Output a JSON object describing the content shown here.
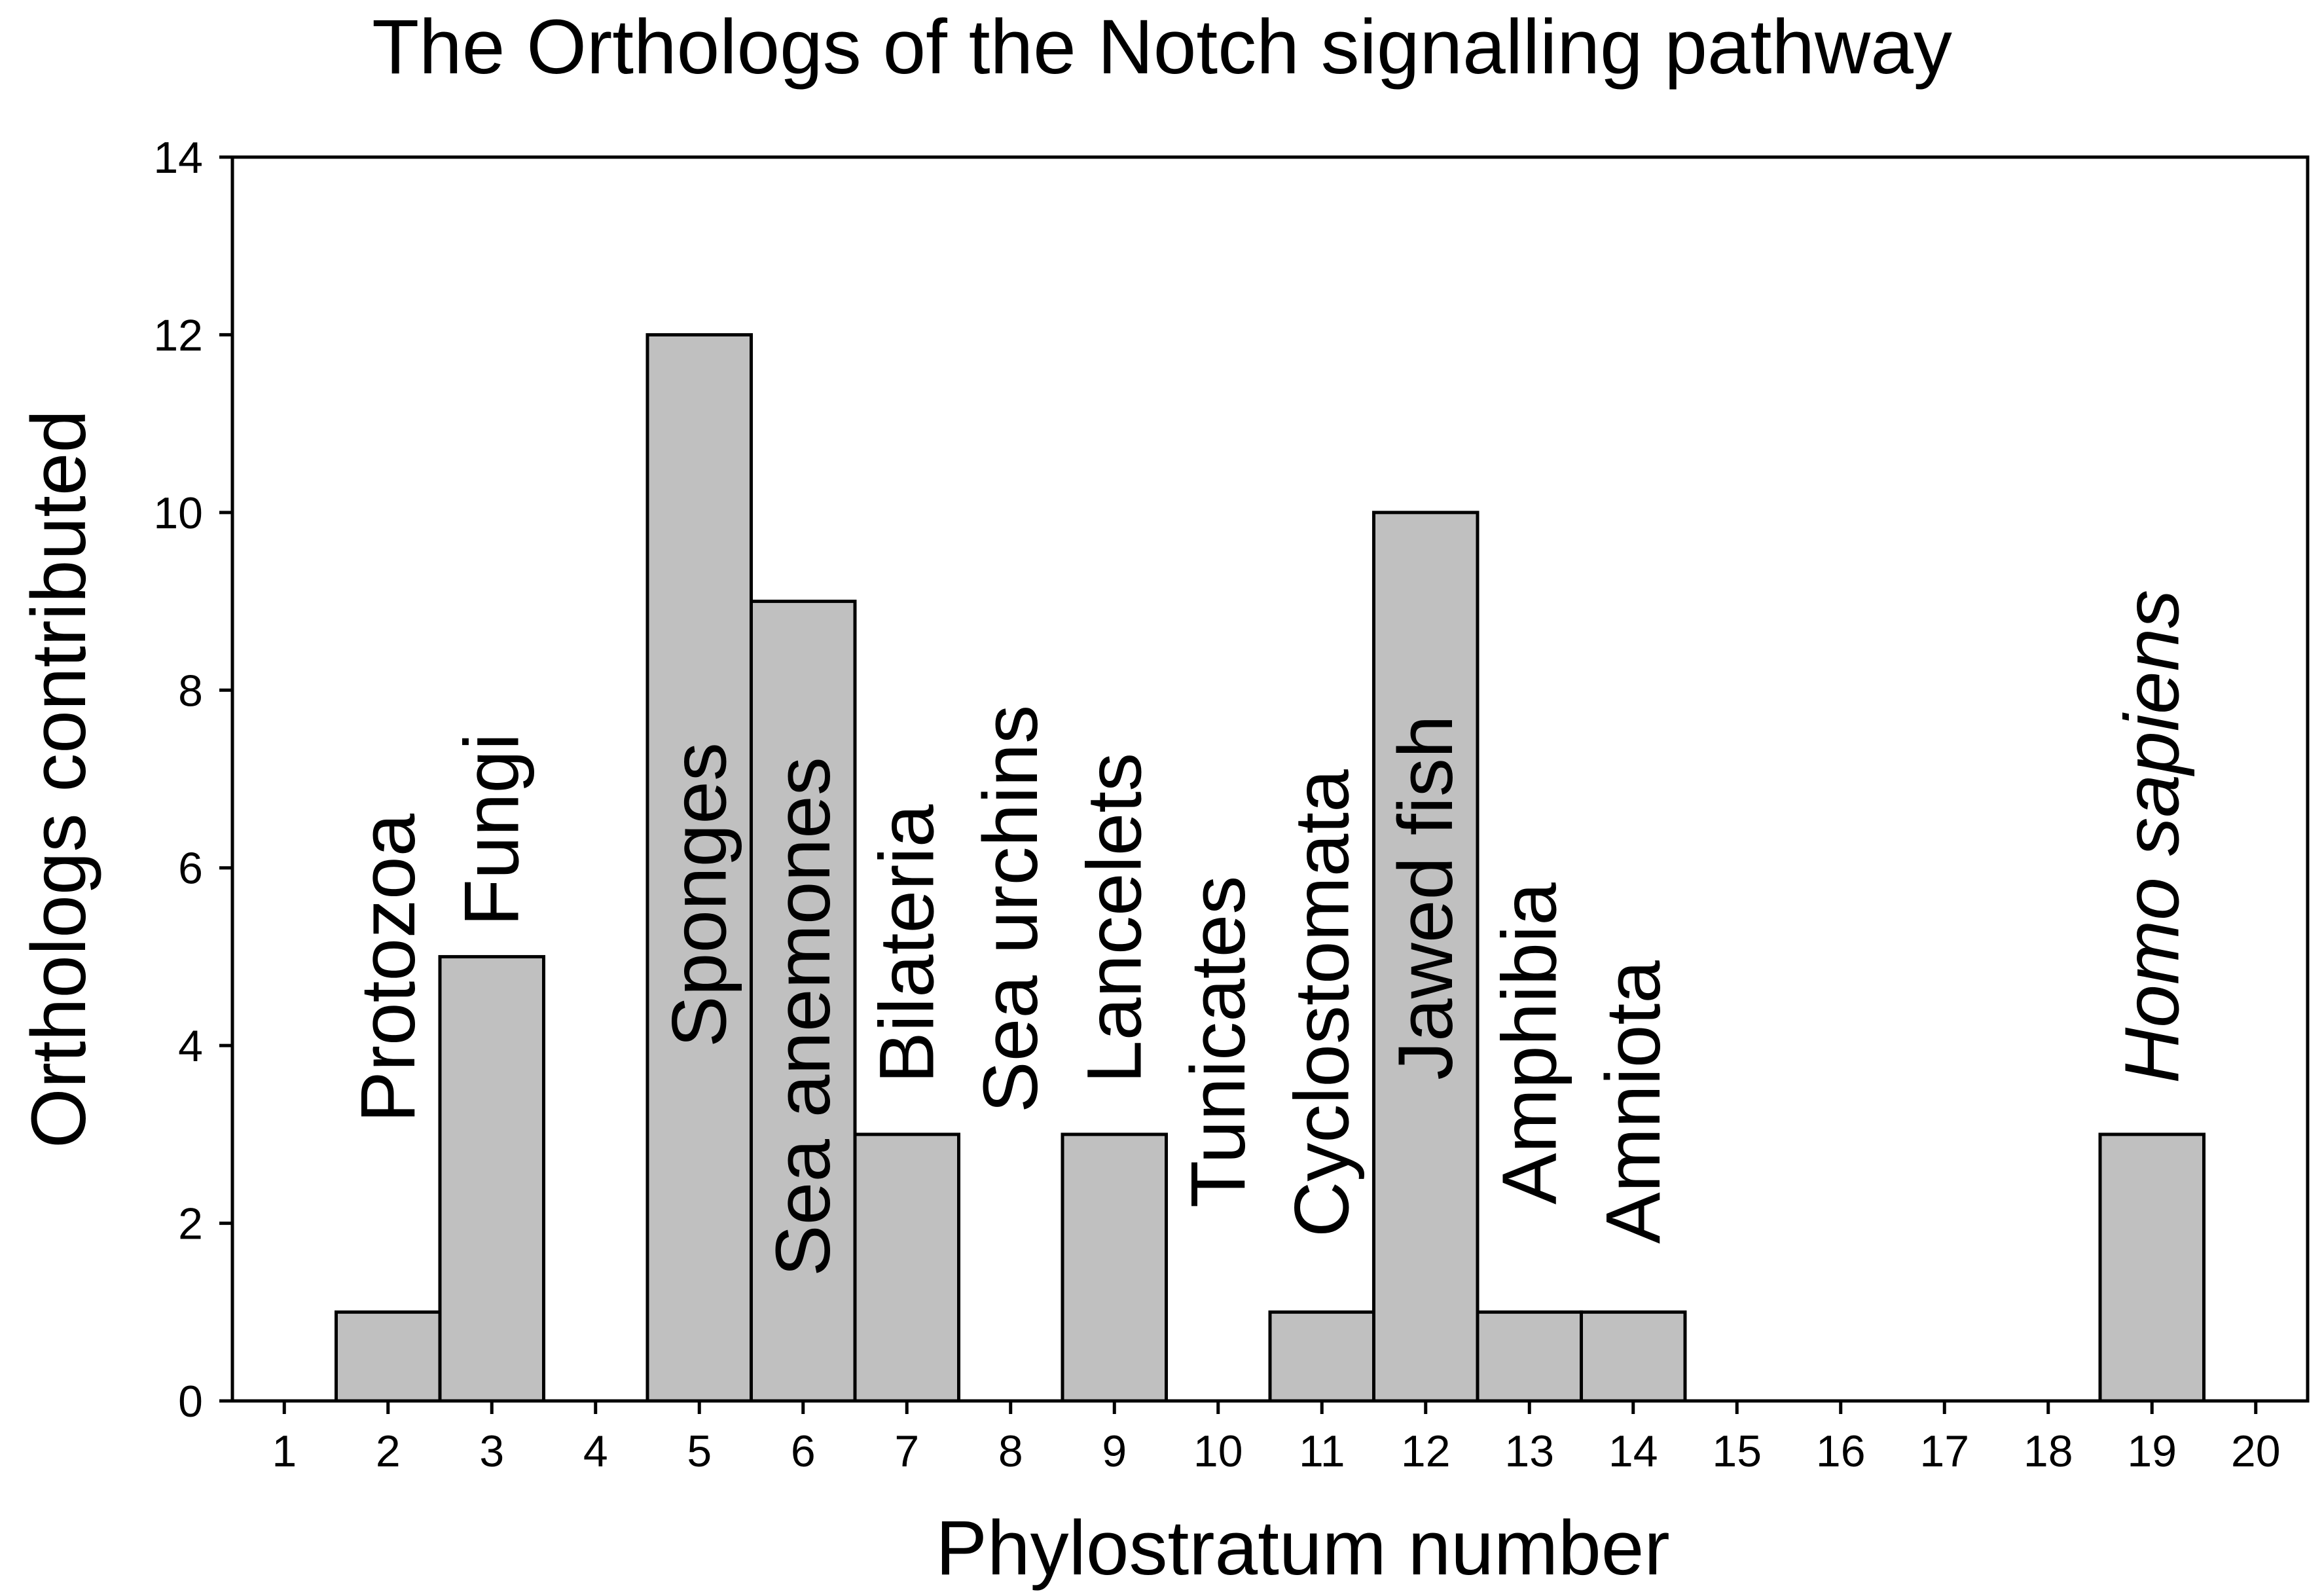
{
  "chart_data": {
    "type": "bar",
    "title": "The Orthologs of the Notch signalling pathway",
    "xlabel": "Phylostratum number",
    "ylabel": "Orthologs contributed",
    "x": [
      1,
      2,
      3,
      4,
      5,
      6,
      7,
      8,
      9,
      10,
      11,
      12,
      13,
      14,
      15,
      16,
      17,
      18,
      19,
      20
    ],
    "values": [
      0,
      1,
      5,
      0,
      12,
      9,
      3,
      0,
      3,
      0,
      1,
      10,
      1,
      1,
      0,
      0,
      0,
      0,
      3,
      0
    ],
    "xlim": [
      0.5,
      20.5
    ],
    "ylim": [
      0,
      14
    ],
    "yticks": [
      0,
      2,
      4,
      6,
      8,
      10,
      12,
      14
    ],
    "xticks": [
      1,
      2,
      3,
      4,
      5,
      6,
      7,
      8,
      9,
      10,
      11,
      12,
      13,
      14,
      15,
      16,
      17,
      18,
      19,
      20
    ],
    "bar_color": "#c0c0c0",
    "grid": false,
    "annotations": [
      {
        "x": 2,
        "text": "Protozoa",
        "italic": false
      },
      {
        "x": 3,
        "text": "Fungi",
        "italic": false
      },
      {
        "x": 5,
        "text": "Sponges",
        "italic": false
      },
      {
        "x": 6,
        "text": "Sea anemones",
        "italic": false
      },
      {
        "x": 7,
        "text": "Bilateria",
        "italic": false
      },
      {
        "x": 8,
        "text": "Sea urchins",
        "italic": false
      },
      {
        "x": 9,
        "text": "Lancelets",
        "italic": false
      },
      {
        "x": 10,
        "text": "Tunicates",
        "italic": false
      },
      {
        "x": 11,
        "text": "Cyclostomata",
        "italic": false
      },
      {
        "x": 12,
        "text": "Jawed fish",
        "italic": false
      },
      {
        "x": 13,
        "text": "Amphibia",
        "italic": false
      },
      {
        "x": 14,
        "text": "Amniota",
        "italic": false
      },
      {
        "x": 19,
        "text": "Homo sapiens",
        "italic": true
      }
    ]
  }
}
